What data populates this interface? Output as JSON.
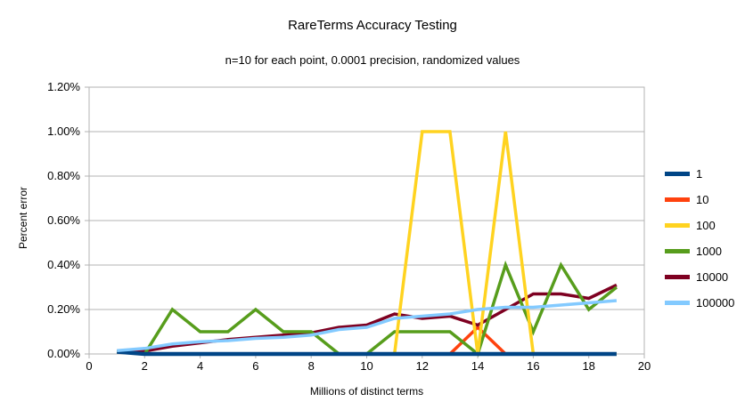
{
  "chart_data": {
    "type": "line",
    "title": "RareTerms Accuracy Testing",
    "subtitle": "n=10 for each point, 0.0001 precision, randomized values",
    "xlabel": "Millions of distinct terms",
    "ylabel": "Percent error",
    "xlim": [
      0,
      20
    ],
    "ylim": [
      0,
      1.2
    ],
    "grid": "horizontal",
    "legend_position": "right",
    "colors": {
      "grid": "#b3b3b3",
      "text": "#000000",
      "background": "#ffffff"
    },
    "x_tick_labels": [
      "0",
      "2",
      "4",
      "6",
      "8",
      "10",
      "12",
      "14",
      "16",
      "18",
      "20"
    ],
    "x_tick_values": [
      0,
      2,
      4,
      6,
      8,
      10,
      12,
      14,
      16,
      18,
      20
    ],
    "y_tick_labels": [
      "0.00%",
      "0.20%",
      "0.40%",
      "0.60%",
      "0.80%",
      "1.00%",
      "1.20%"
    ],
    "y_tick_values": [
      0,
      0.2,
      0.4,
      0.6,
      0.8,
      1.0,
      1.2
    ],
    "x": [
      1,
      2,
      3,
      4,
      5,
      6,
      7,
      8,
      9,
      10,
      11,
      12,
      13,
      14,
      15,
      16,
      17,
      18,
      19
    ],
    "series": [
      {
        "name": "1",
        "color": "#004586",
        "values": [
          0.01,
          0,
          0,
          0,
          0,
          0,
          0,
          0,
          0,
          0,
          0,
          0,
          0,
          0,
          0,
          0,
          0,
          0,
          0
        ]
      },
      {
        "name": "10",
        "color": "#ff420e",
        "values": [
          0.01,
          0,
          0,
          0,
          0,
          0,
          0,
          0,
          0,
          0,
          0,
          0,
          0,
          0.12,
          0,
          0,
          0,
          0,
          0
        ]
      },
      {
        "name": "100",
        "color": "#ffd320",
        "values": [
          0.01,
          0,
          0,
          0,
          0,
          0,
          0,
          0,
          0,
          0,
          0,
          1.0,
          1.0,
          0,
          1.0,
          0,
          0,
          0,
          0
        ]
      },
      {
        "name": "1000",
        "color": "#579d1c",
        "values": [
          0.01,
          0,
          0.2,
          0.1,
          0.1,
          0.2,
          0.1,
          0.1,
          0,
          0,
          0.1,
          0.1,
          0.1,
          0,
          0.4,
          0.1,
          0.4,
          0.2,
          0.3
        ]
      },
      {
        "name": "10000",
        "color": "#7e0021",
        "values": [
          0.01,
          0.013,
          0.035,
          0.05,
          0.065,
          0.075,
          0.085,
          0.095,
          0.12,
          0.13,
          0.18,
          0.16,
          0.17,
          0.13,
          0.2,
          0.27,
          0.27,
          0.25,
          0.31
        ]
      },
      {
        "name": "100000",
        "color": "#83caff",
        "values": [
          0.015,
          0.025,
          0.045,
          0.055,
          0.06,
          0.07,
          0.075,
          0.085,
          0.11,
          0.12,
          0.16,
          0.17,
          0.18,
          0.2,
          0.21,
          0.21,
          0.22,
          0.23,
          0.24
        ]
      }
    ],
    "draw_order": [
      "10",
      "10000",
      "1000",
      "100",
      "1",
      "100000"
    ]
  }
}
